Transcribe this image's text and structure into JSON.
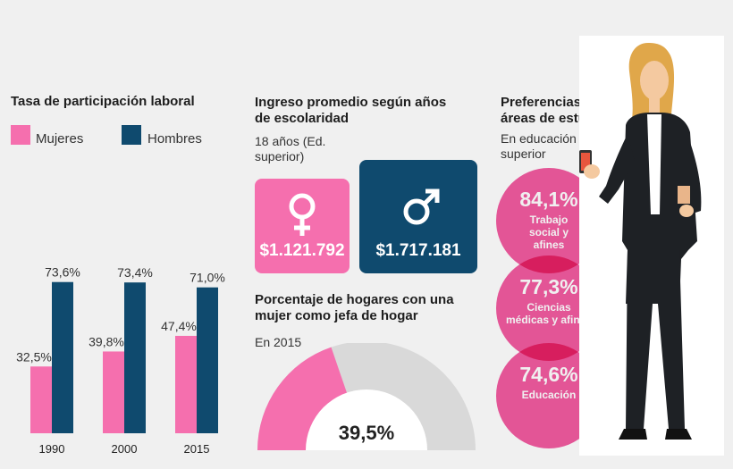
{
  "colors": {
    "pink": "#f56fae",
    "navy": "#0f4a6e",
    "circle_pink": "#f25aa0",
    "gray": "#d9d9d9"
  },
  "participation": {
    "title": "Tasa de participación laboral",
    "legend": {
      "women": "Mujeres",
      "men": "Hombres"
    }
  },
  "chart_data": {
    "type": "bar",
    "title": "Tasa de participación laboral",
    "categories": [
      "1990",
      "2000",
      "2015"
    ],
    "series": [
      {
        "name": "Mujeres",
        "values": [
          32.5,
          39.8,
          47.4
        ],
        "labels": [
          "32,5%",
          "39,8%",
          "47,4%"
        ]
      },
      {
        "name": "Hombres",
        "values": [
          73.6,
          73.4,
          71.0
        ],
        "labels": [
          "73,6%",
          "73,4%",
          "71,0%"
        ]
      }
    ],
    "ylim": [
      0,
      100
    ],
    "grid": false,
    "legend_position": "top-left"
  },
  "income": {
    "title": "Ingreso promedio según años de escolaridad",
    "subtitle": "18 años (Ed. superior)",
    "women": {
      "icon": "female-symbol-icon",
      "amount": "$1.121.792"
    },
    "men": {
      "icon": "male-symbol-icon",
      "amount": "$1.717.181"
    }
  },
  "households": {
    "title": "Porcentaje de hogares con una mujer como jefa de hogar",
    "subtitle": "En 2015",
    "percent_label": "39,5%",
    "value": 39.5
  },
  "preferences": {
    "title": "Preferencias de áreas de estudio",
    "subtitle": "En educación superior",
    "items": [
      {
        "pct": "84,1%",
        "label": "Trabajo social y afines"
      },
      {
        "pct": "77,3%",
        "label": "Ciencias médicas y afines"
      },
      {
        "pct": "74,6%",
        "label": "Educación"
      }
    ]
  }
}
